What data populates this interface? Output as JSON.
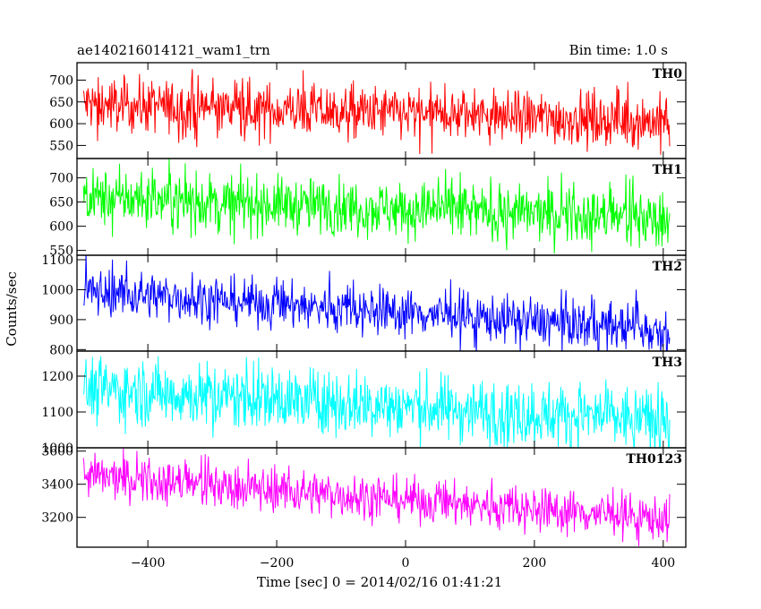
{
  "chart_data": {
    "type": "line",
    "title": "ae140216014121_wam1_trn",
    "subtitle": "Bin time: 1.0 s",
    "xlabel": "Time [sec] 0 = 2014/02/16 01:41:21",
    "ylabel": "Counts/sec",
    "xlim": [
      -510,
      435
    ],
    "xticks": [
      -400,
      -200,
      0,
      200,
      400
    ],
    "x_range": [
      -500,
      410
    ],
    "panels": [
      {
        "name": "TH0",
        "color": "#ff0000",
        "ylim": [
          520,
          740
        ],
        "yticks": [
          550,
          600,
          650,
          700
        ],
        "start": 645,
        "end": 605,
        "noise": 30,
        "spike": 95
      },
      {
        "name": "TH1",
        "color": "#00ff00",
        "ylim": [
          540,
          740
        ],
        "yticks": [
          550,
          600,
          650,
          700
        ],
        "start": 660,
        "end": 615,
        "noise": 28,
        "spike": 90
      },
      {
        "name": "TH2",
        "color": "#0000ff",
        "ylim": [
          795,
          1115
        ],
        "yticks": [
          800,
          900,
          1000,
          1100
        ],
        "start": 995,
        "end": 865,
        "noise": 38,
        "spike": 130
      },
      {
        "name": "TH3",
        "color": "#00ffff",
        "ylim": [
          1000,
          1270
        ],
        "yticks": [
          1000,
          1100,
          1200
        ],
        "start": 1165,
        "end": 1075,
        "noise": 45,
        "spike": 120
      },
      {
        "name": "TH0123",
        "color": "#ff00ff",
        "ylim": [
          3020,
          3620
        ],
        "yticks": [
          3200,
          3400,
          3600
        ],
        "start": 3450,
        "end": 3190,
        "noise": 65,
        "spike": 180
      }
    ]
  }
}
